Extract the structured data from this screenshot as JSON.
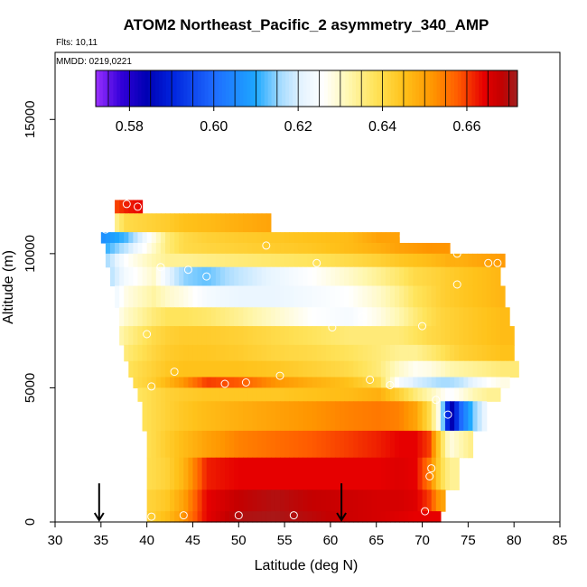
{
  "chart_data": {
    "type": "heatmap",
    "title": "ATOM2 Northeast_Pacific_2 asymmetry_340_AMP",
    "flights_label": "Flts: 10,11",
    "dates_label": "MMDD: 0219,0221",
    "xlabel": "Latitude (deg N)",
    "ylabel": "Altitude (m)",
    "xlim": [
      30,
      85
    ],
    "ylim": [
      0,
      17500
    ],
    "xticks": [
      30,
      35,
      40,
      45,
      50,
      55,
      60,
      65,
      70,
      75,
      80,
      85
    ],
    "yticks": [
      0,
      5000,
      10000,
      15000
    ],
    "colorbar": {
      "range": [
        0.572,
        0.672
      ],
      "ticks": [
        0.58,
        0.6,
        0.62,
        0.64,
        0.66
      ],
      "tick_labels": [
        "0.58",
        "0.60",
        "0.62",
        "0.64",
        "0.66"
      ],
      "stops": [
        {
          "v": 0.572,
          "c": "#9b30ff"
        },
        {
          "v": 0.578,
          "c": "#3300d9"
        },
        {
          "v": 0.584,
          "c": "#0000b3"
        },
        {
          "v": 0.59,
          "c": "#0022dd"
        },
        {
          "v": 0.6,
          "c": "#1e6bff"
        },
        {
          "v": 0.61,
          "c": "#1ea8ff"
        },
        {
          "v": 0.616,
          "c": "#a8dcff"
        },
        {
          "v": 0.621,
          "c": "#e6f4ff"
        },
        {
          "v": 0.626,
          "c": "#ffffff"
        },
        {
          "v": 0.632,
          "c": "#fff7b0"
        },
        {
          "v": 0.638,
          "c": "#ffe45c"
        },
        {
          "v": 0.645,
          "c": "#ffc21a"
        },
        {
          "v": 0.652,
          "c": "#ff9500"
        },
        {
          "v": 0.658,
          "c": "#ff5a00"
        },
        {
          "v": 0.664,
          "c": "#e60000"
        },
        {
          "v": 0.668,
          "c": "#c40000"
        },
        {
          "v": 0.672,
          "c": "#a01f1f"
        }
      ]
    },
    "field": {
      "lat_edges": [
        34.0,
        35.5,
        40.0,
        41.5,
        43.0,
        45.0,
        48.0,
        52.0,
        56.0,
        60.0,
        64.0,
        66.5,
        68.5,
        70.0,
        71.5,
        72.5,
        73.5,
        75.0,
        76.5,
        78.0,
        79.5,
        80.5
      ],
      "rows": [
        {
          "alt": [
            11500,
            12000
          ],
          "from": 36.5,
          "to": 39.5,
          "v": [
            0.655,
            0.662,
            0.665,
            0.655,
            0.65,
            0.648,
            0.645,
            0.643,
            0.642,
            0.642,
            0.642,
            0.642,
            0.642,
            0.642,
            0.642,
            0.642,
            0.642,
            0.642,
            0.642,
            0.642,
            0.642
          ]
        },
        {
          "alt": [
            10800,
            11500
          ],
          "from": 36.5,
          "to": 53.5,
          "v": [
            0.625,
            0.64,
            0.642,
            0.643,
            0.645,
            0.646,
            0.648,
            0.65,
            0.65,
            0.65,
            0.65,
            0.65,
            0.65,
            0.65,
            0.65,
            0.65,
            0.65,
            0.65,
            0.65,
            0.65,
            0.65
          ]
        },
        {
          "alt": [
            10400,
            10800
          ],
          "from": 35.0,
          "to": 67.5,
          "v": [
            0.605,
            0.612,
            0.628,
            0.636,
            0.64,
            0.642,
            0.643,
            0.644,
            0.645,
            0.646,
            0.65,
            0.65,
            0.65,
            0.65,
            0.65,
            0.65,
            0.65,
            0.65,
            0.65,
            0.65,
            0.65
          ]
        },
        {
          "alt": [
            10000,
            10400
          ],
          "from": 35.5,
          "to": 73.0,
          "v": [
            0.608,
            0.618,
            0.63,
            0.636,
            0.64,
            0.641,
            0.642,
            0.643,
            0.644,
            0.646,
            0.648,
            0.65,
            0.651,
            0.652,
            0.652,
            0.652,
            0.652,
            0.652,
            0.652,
            0.652,
            0.652
          ]
        },
        {
          "alt": [
            9500,
            10000
          ],
          "from": 35.5,
          "to": 79.0,
          "v": [
            0.612,
            0.626,
            0.632,
            0.634,
            0.634,
            0.635,
            0.636,
            0.637,
            0.638,
            0.64,
            0.642,
            0.644,
            0.645,
            0.646,
            0.647,
            0.648,
            0.648,
            0.649,
            0.65,
            0.651,
            0.651
          ]
        },
        {
          "alt": [
            8800,
            9500
          ],
          "from": 36.0,
          "to": 78.5,
          "v": [
            0.612,
            0.624,
            0.63,
            0.622,
            0.615,
            0.613,
            0.618,
            0.622,
            0.626,
            0.63,
            0.634,
            0.637,
            0.64,
            0.641,
            0.642,
            0.643,
            0.644,
            0.645,
            0.646,
            0.647,
            0.647
          ]
        },
        {
          "alt": [
            8000,
            8800
          ],
          "from": 36.5,
          "to": 79.0,
          "v": [
            0.615,
            0.628,
            0.633,
            0.63,
            0.628,
            0.624,
            0.622,
            0.622,
            0.624,
            0.626,
            0.63,
            0.634,
            0.638,
            0.64,
            0.642,
            0.643,
            0.644,
            0.645,
            0.646,
            0.647,
            0.647
          ]
        },
        {
          "alt": [
            7300,
            8000
          ],
          "from": 37.0,
          "to": 79.5,
          "v": [
            0.62,
            0.63,
            0.636,
            0.638,
            0.638,
            0.637,
            0.634,
            0.63,
            0.626,
            0.624,
            0.628,
            0.632,
            0.636,
            0.639,
            0.641,
            0.642,
            0.643,
            0.644,
            0.645,
            0.646,
            0.646
          ]
        },
        {
          "alt": [
            6600,
            7300
          ],
          "from": 37.0,
          "to": 80.0,
          "v": [
            0.625,
            0.634,
            0.64,
            0.642,
            0.643,
            0.643,
            0.642,
            0.64,
            0.638,
            0.636,
            0.636,
            0.636,
            0.638,
            0.64,
            0.641,
            0.642,
            0.643,
            0.644,
            0.645,
            0.646,
            0.646
          ]
        },
        {
          "alt": [
            6000,
            6600
          ],
          "from": 37.5,
          "to": 80.0,
          "v": [
            0.628,
            0.636,
            0.641,
            0.643,
            0.644,
            0.644,
            0.643,
            0.641,
            0.64,
            0.638,
            0.636,
            0.634,
            0.634,
            0.636,
            0.638,
            0.64,
            0.642,
            0.643,
            0.644,
            0.645,
            0.645
          ]
        },
        {
          "alt": [
            5400,
            6000
          ],
          "from": 38.0,
          "to": 80.5,
          "v": [
            0.63,
            0.638,
            0.642,
            0.644,
            0.645,
            0.645,
            0.645,
            0.644,
            0.642,
            0.64,
            0.636,
            0.63,
            0.627,
            0.628,
            0.63,
            0.632,
            0.633,
            0.634,
            0.635,
            0.636,
            0.636
          ]
        },
        {
          "alt": [
            5000,
            5400
          ],
          "from": 38.5,
          "to": 79.5,
          "v": [
            0.63,
            0.638,
            0.643,
            0.647,
            0.652,
            0.66,
            0.658,
            0.652,
            0.648,
            0.645,
            0.64,
            0.624,
            0.62,
            0.618,
            0.616,
            0.616,
            0.618,
            0.622,
            0.626,
            0.628,
            0.628
          ]
        },
        {
          "alt": [
            4500,
            5000
          ],
          "from": 39.0,
          "to": 78.5,
          "v": [
            0.63,
            0.636,
            0.64,
            0.642,
            0.643,
            0.644,
            0.644,
            0.644,
            0.645,
            0.646,
            0.648,
            0.642,
            0.636,
            0.632,
            0.628,
            0.625,
            0.628,
            0.632,
            0.634,
            0.634,
            0.634
          ]
        },
        {
          "alt": [
            3400,
            4500
          ],
          "from": 39.5,
          "to": 77.0,
          "v": [
            0.632,
            0.636,
            0.64,
            0.642,
            0.644,
            0.646,
            0.648,
            0.65,
            0.652,
            0.654,
            0.655,
            0.654,
            0.65,
            0.64,
            0.625,
            0.58,
            0.6,
            0.615,
            0.625,
            0.625,
            0.625
          ]
        },
        {
          "alt": [
            2400,
            3400
          ],
          "from": 40.0,
          "to": 75.5,
          "v": [
            0.634,
            0.636,
            0.64,
            0.643,
            0.646,
            0.65,
            0.654,
            0.656,
            0.658,
            0.66,
            0.662,
            0.664,
            0.664,
            0.66,
            0.64,
            0.628,
            0.632,
            0.636,
            0.636,
            0.636,
            0.636
          ]
        },
        {
          "alt": [
            1200,
            2400
          ],
          "from": 40.0,
          "to": 74.0,
          "v": [
            0.636,
            0.638,
            0.64,
            0.642,
            0.647,
            0.662,
            0.664,
            0.664,
            0.664,
            0.664,
            0.664,
            0.665,
            0.664,
            0.655,
            0.64,
            0.634,
            0.634,
            0.634,
            0.634,
            0.634,
            0.634
          ]
        },
        {
          "alt": [
            400,
            1200
          ],
          "from": 40.0,
          "to": 72.5,
          "v": [
            0.638,
            0.64,
            0.642,
            0.644,
            0.65,
            0.664,
            0.668,
            0.67,
            0.668,
            0.667,
            0.666,
            0.666,
            0.665,
            0.66,
            0.65,
            0.65,
            0.65,
            0.65,
            0.65,
            0.65,
            0.65
          ]
        },
        {
          "alt": [
            0,
            400
          ],
          "from": 40.0,
          "to": 72.0,
          "v": [
            0.64,
            0.641,
            0.643,
            0.646,
            0.652,
            0.664,
            0.67,
            0.671,
            0.669,
            0.667,
            0.666,
            0.665,
            0.664,
            0.664,
            0.664,
            0.664,
            0.664,
            0.664,
            0.664,
            0.664,
            0.664
          ]
        }
      ]
    },
    "markers": [
      {
        "lat": 37.8,
        "alt": 11850
      },
      {
        "lat": 39.0,
        "alt": 11750
      },
      {
        "lat": 35.5,
        "alt": 10900
      },
      {
        "lat": 53.0,
        "alt": 10300
      },
      {
        "lat": 68.0,
        "alt": 10650
      },
      {
        "lat": 73.8,
        "alt": 10000
      },
      {
        "lat": 41.5,
        "alt": 9500
      },
      {
        "lat": 44.5,
        "alt": 9400
      },
      {
        "lat": 46.5,
        "alt": 9150
      },
      {
        "lat": 58.5,
        "alt": 9650
      },
      {
        "lat": 77.2,
        "alt": 9650
      },
      {
        "lat": 78.2,
        "alt": 9650
      },
      {
        "lat": 73.8,
        "alt": 8850
      },
      {
        "lat": 63.5,
        "alt": 7650
      },
      {
        "lat": 60.2,
        "alt": 7250
      },
      {
        "lat": 70.0,
        "alt": 7300
      },
      {
        "lat": 40.0,
        "alt": 7000
      },
      {
        "lat": 43.0,
        "alt": 5600
      },
      {
        "lat": 54.5,
        "alt": 5450
      },
      {
        "lat": 40.5,
        "alt": 5050
      },
      {
        "lat": 48.5,
        "alt": 5150
      },
      {
        "lat": 50.8,
        "alt": 5200
      },
      {
        "lat": 64.3,
        "alt": 5300
      },
      {
        "lat": 66.5,
        "alt": 5100
      },
      {
        "lat": 71.5,
        "alt": 4550
      },
      {
        "lat": 72.8,
        "alt": 4000
      },
      {
        "lat": 71.0,
        "alt": 2000
      },
      {
        "lat": 70.8,
        "alt": 1700
      },
      {
        "lat": 70.3,
        "alt": 400
      },
      {
        "lat": 40.5,
        "alt": 200
      },
      {
        "lat": 44.0,
        "alt": 250
      },
      {
        "lat": 50.0,
        "alt": 250
      },
      {
        "lat": 56.0,
        "alt": 250
      }
    ],
    "arrows": [
      {
        "lat": 34.8,
        "alt_from": 700,
        "alt_to": 0
      },
      {
        "lat": 61.2,
        "alt_from": 700,
        "alt_to": 0
      }
    ]
  }
}
